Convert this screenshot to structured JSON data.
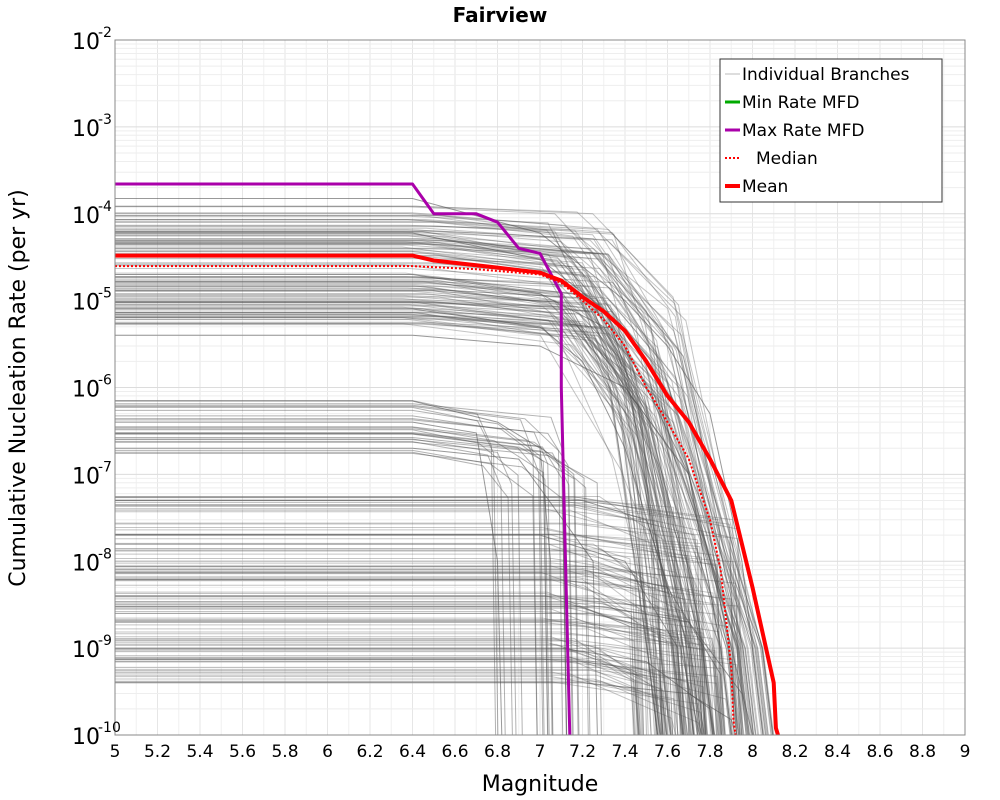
{
  "chart_data": {
    "type": "line",
    "title": "Fairview",
    "xlabel": "Magnitude",
    "ylabel": "Cumulative Nucleation Rate (per yr)",
    "xlim": [
      5,
      9
    ],
    "ylim": [
      1e-10,
      0.01
    ],
    "yscale": "log",
    "grid": true,
    "legend_position": "top-right",
    "x_ticks": [
      "5",
      "5.2",
      "5.4",
      "5.6",
      "5.8",
      "6",
      "6.2",
      "6.4",
      "6.6",
      "6.8",
      "7",
      "7.2",
      "7.4",
      "7.6",
      "7.8",
      "8",
      "8.2",
      "8.4",
      "8.6",
      "8.8",
      "9"
    ],
    "y_tick_exponents": [
      "-10",
      "-9",
      "-8",
      "-7",
      "-6",
      "-5",
      "-4",
      "-3",
      "-2"
    ],
    "series": [
      {
        "name": "Individual Branches",
        "color": "#555555",
        "style": "thin",
        "note": "hundreds of logic-tree branch curves",
        "representative": [
          {
            "x": [
              5,
              6.4,
              7.0,
              7.4,
              7.6,
              7.8,
              7.95,
              8.05
            ],
            "y": [
              0.00015,
              0.00015,
              6e-05,
              1e-05,
              3e-06,
              5e-07,
              1e-08,
              1e-10
            ]
          },
          {
            "x": [
              5,
              6.4,
              7.0,
              7.3,
              7.5,
              7.7,
              7.85,
              7.9
            ],
            "y": [
              6e-05,
              6e-05,
              3e-05,
              8e-06,
              1e-06,
              1e-07,
              1e-09,
              1e-10
            ]
          },
          {
            "x": [
              5,
              6.4,
              7.0,
              7.3,
              7.5,
              7.65,
              7.75,
              7.78
            ],
            "y": [
              2e-05,
              2e-05,
              1.2e-05,
              5e-06,
              5e-07,
              2e-08,
              1e-09,
              1e-10
            ]
          },
          {
            "x": [
              5,
              6.4,
              7.0,
              7.2,
              7.4,
              7.6,
              7.75
            ],
            "y": [
              8e-06,
              8e-06,
              5e-06,
              2e-06,
              2e-07,
              5e-09,
              1e-10
            ]
          },
          {
            "x": [
              5,
              6.4,
              7.0,
              7.4,
              7.7,
              7.9,
              8.0
            ],
            "y": [
              4e-06,
              4e-06,
              3e-06,
              1e-06,
              1e-07,
              1e-09,
              1e-10
            ]
          },
          {
            "x": [
              5,
              6.4,
              6.8,
              7.0,
              7.05,
              7.06
            ],
            "y": [
              7e-07,
              7e-07,
              4e-07,
              2e-07,
              1e-08,
              1e-10
            ]
          },
          {
            "x": [
              5,
              6.4,
              6.7,
              6.8,
              6.82
            ],
            "y": [
              4e-07,
              4e-07,
              3e-07,
              1e-08,
              1e-10
            ]
          },
          {
            "x": [
              5,
              6.4,
              6.9,
              7.25,
              7.27
            ],
            "y": [
              2e-07,
              2e-07,
              1.5e-07,
              1e-08,
              1e-10
            ]
          },
          {
            "x": [
              5,
              7.2,
              7.5,
              7.7,
              7.72
            ],
            "y": [
              5e-08,
              5e-08,
              3e-08,
              1e-09,
              1e-10
            ]
          },
          {
            "x": [
              5,
              7.0,
              7.4,
              7.65,
              7.67
            ],
            "y": [
              2e-08,
              2e-08,
              1e-08,
              1e-09,
              1e-10
            ]
          },
          {
            "x": [
              5,
              7.2,
              7.6,
              7.85,
              7.87
            ],
            "y": [
              8e-09,
              8e-09,
              5e-09,
              5e-10,
              1e-10
            ]
          },
          {
            "x": [
              5,
              7.3,
              7.7,
              7.95,
              7.97
            ],
            "y": [
              3e-09,
              3e-09,
              2e-09,
              3e-10,
              1e-10
            ]
          },
          {
            "x": [
              5,
              7.1,
              7.5,
              7.8,
              7.82
            ],
            "y": [
              1e-09,
              1e-09,
              7e-10,
              2e-10,
              1e-10
            ]
          },
          {
            "x": [
              5,
              7.2,
              7.7,
              7.9,
              7.92
            ],
            "y": [
              4e-10,
              4e-10,
              3e-10,
              1.5e-10,
              1e-10
            ]
          }
        ]
      },
      {
        "name": "Min Rate MFD",
        "color": "#00aa00",
        "x": [],
        "y": []
      },
      {
        "name": "Max Rate MFD",
        "color": "#aa00aa",
        "x": [
          5.0,
          6.4,
          6.5,
          6.7,
          6.8,
          6.9,
          7.0,
          7.1,
          7.1,
          7.12,
          7.14
        ],
        "y": [
          0.00022,
          0.00022,
          0.0001,
          0.0001,
          8e-05,
          4e-05,
          3.5e-05,
          1.2e-05,
          1e-06,
          1e-08,
          1e-10
        ]
      },
      {
        "name": "Median",
        "color": "#ff0000",
        "style": "dotted",
        "x": [
          5.0,
          6.4,
          6.7,
          7.0,
          7.1,
          7.2,
          7.3,
          7.4,
          7.5,
          7.6,
          7.7,
          7.8,
          7.85,
          7.9,
          7.91,
          7.92
        ],
        "y": [
          2.5e-05,
          2.5e-05,
          2.3e-05,
          2e-05,
          1.6e-05,
          1e-05,
          6e-06,
          3e-06,
          1e-06,
          4e-07,
          1.5e-07,
          3e-08,
          8e-09,
          6e-10,
          1.5e-10,
          1e-10
        ]
      },
      {
        "name": "Mean",
        "color": "#ff0000",
        "style": "thick",
        "x": [
          5.0,
          6.4,
          6.5,
          6.8,
          7.0,
          7.1,
          7.2,
          7.3,
          7.4,
          7.5,
          7.6,
          7.7,
          7.8,
          7.9,
          8.0,
          8.1,
          8.11,
          8.12
        ],
        "y": [
          3.3e-05,
          3.3e-05,
          2.9e-05,
          2.4e-05,
          2.1e-05,
          1.7e-05,
          1.1e-05,
          7.5e-06,
          4.5e-06,
          2e-06,
          8e-07,
          4e-07,
          1.5e-07,
          5e-08,
          5e-09,
          4e-10,
          1.2e-10,
          1e-10
        ]
      }
    ]
  }
}
